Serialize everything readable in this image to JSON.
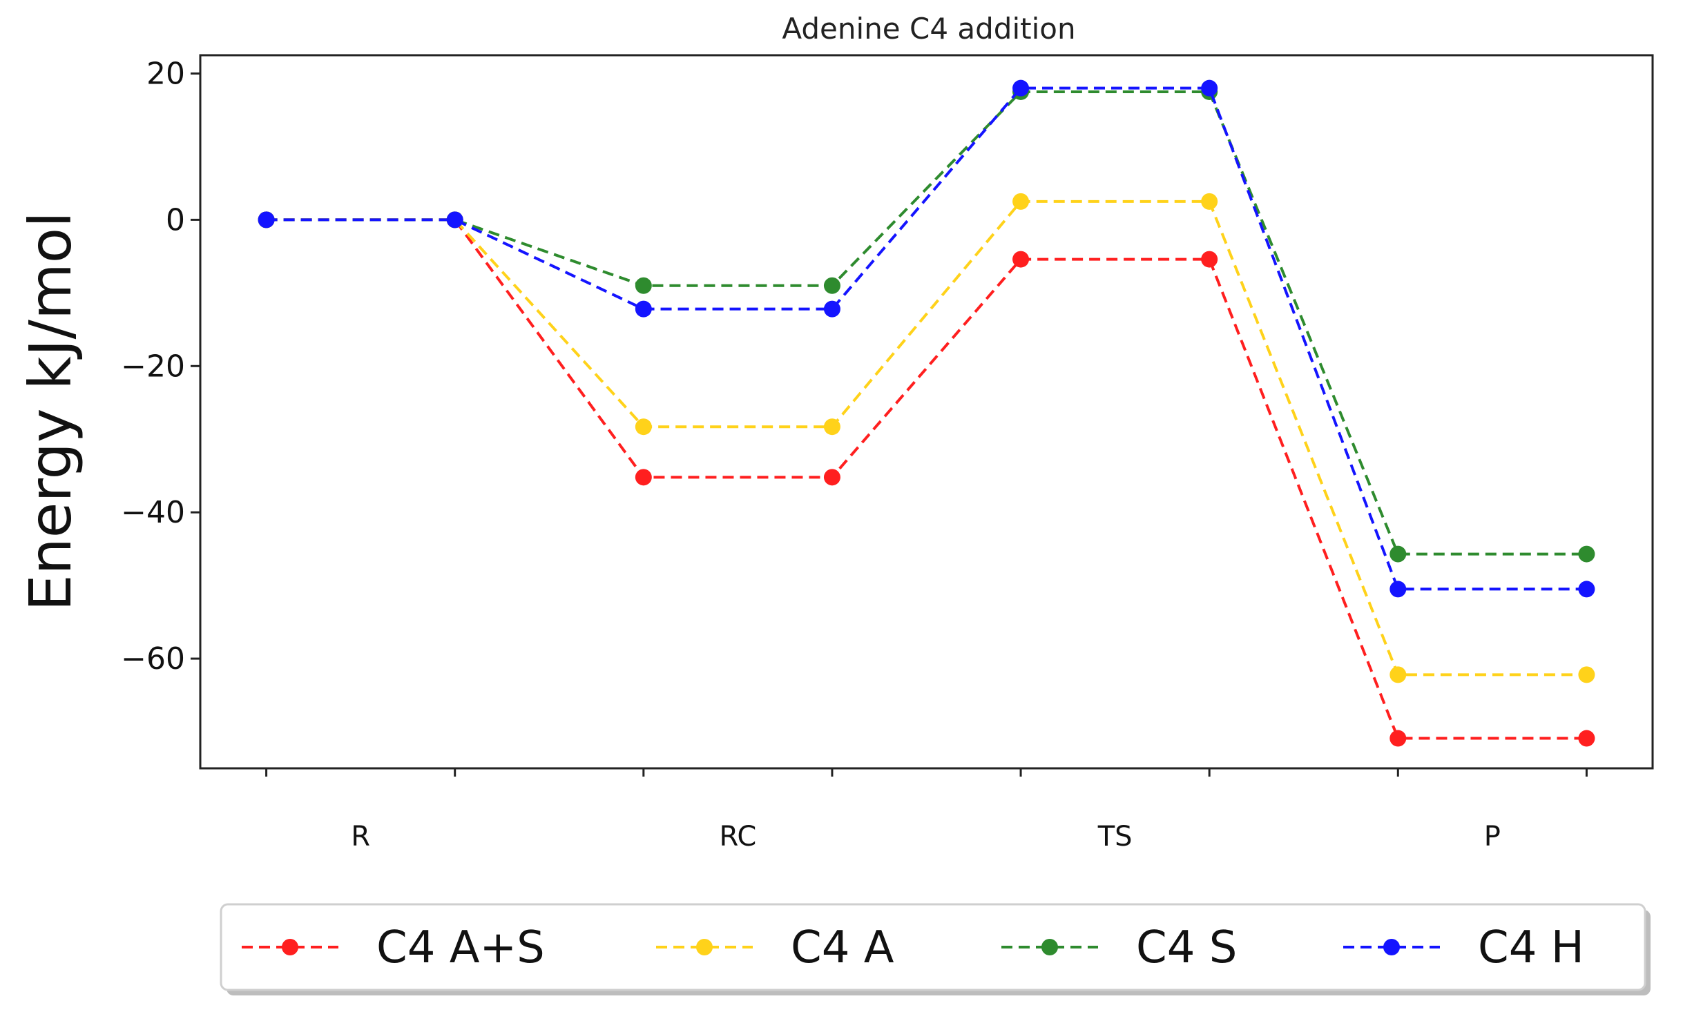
{
  "chart_data": {
    "type": "line",
    "title": "Adenine C4 addition",
    "xlabel": "",
    "ylabel": "Energy kJ/mol",
    "categories": [
      "R",
      "RC",
      "TS",
      "P"
    ],
    "x": [
      0,
      1,
      2,
      3,
      4,
      5,
      6,
      7
    ],
    "xlim": [
      -0.35,
      7.35
    ],
    "ylim": [
      -75,
      22.5
    ],
    "yticks": [
      20,
      0,
      -20,
      -40,
      -60
    ],
    "ytick_labels": [
      "20",
      "0",
      "−20",
      "−40",
      "−60"
    ],
    "grid": false,
    "legend_position": "bottom-center",
    "series": [
      {
        "name": "C4 A+S",
        "color": "#ff1f1f",
        "values": [
          0,
          0,
          -35.2,
          -35.2,
          -5.4,
          -5.4,
          -70.9,
          -70.9
        ]
      },
      {
        "name": "C4 A",
        "color": "#ffd21a",
        "values": [
          0,
          0,
          -28.3,
          -28.3,
          2.5,
          2.5,
          -62.2,
          -62.2
        ]
      },
      {
        "name": "C4 S",
        "color": "#2e8b2e",
        "values": [
          0,
          0,
          -9.0,
          -9.0,
          17.5,
          17.5,
          -45.7,
          -45.7
        ]
      },
      {
        "name": "C4 H",
        "color": "#1414ff",
        "values": [
          0,
          0,
          -12.2,
          -12.2,
          18.0,
          18.0,
          -50.5,
          -50.5
        ]
      }
    ]
  }
}
